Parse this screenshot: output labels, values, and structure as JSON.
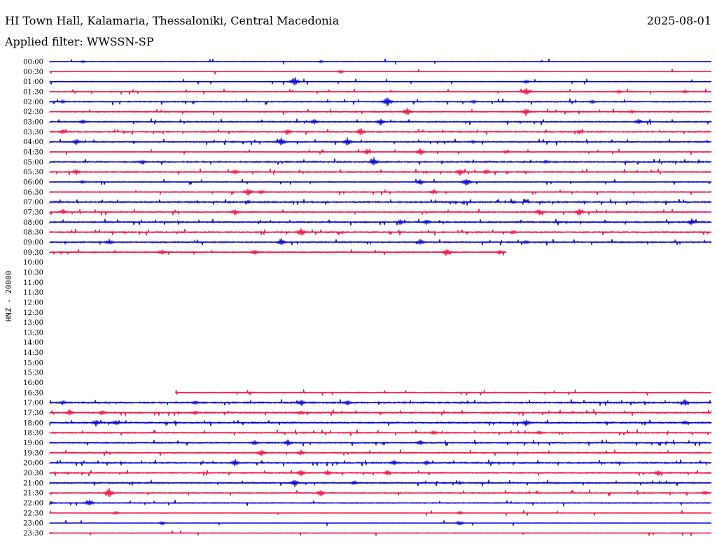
{
  "header": {
    "station": "HI Town Hall, Kalamaria, Thessaloniki, Central Macedonia",
    "date": "2025-08-01",
    "filter_label": "Applied filter: WWSSN-SP"
  },
  "chart_data": {
    "type": "line",
    "title": "HI Town Hall, Kalamaria, Thessaloniki, Central Macedonia",
    "ylabel": "HNZ - 20000",
    "colors": {
      "even_row": "#0000cc",
      "odd_row": "#ee1144"
    },
    "rows": [
      {
        "label": "00:00",
        "start": 0.0,
        "end": 1.0,
        "activity": 0.15,
        "events": [
          {
            "pos": 0.05,
            "amp": 2
          },
          {
            "pos": 0.41,
            "amp": 2
          }
        ]
      },
      {
        "label": "00:30",
        "start": 0.0,
        "end": 1.0,
        "activity": 0.05,
        "events": [
          {
            "pos": 0.44,
            "amp": 3
          }
        ]
      },
      {
        "label": "01:00",
        "start": 0.0,
        "end": 1.0,
        "activity": 0.2,
        "events": [
          {
            "pos": 0.37,
            "amp": 9
          },
          {
            "pos": 0.72,
            "amp": 3
          }
        ]
      },
      {
        "label": "01:30",
        "start": 0.0,
        "end": 1.0,
        "activity": 0.35,
        "events": [
          {
            "pos": 0.72,
            "amp": 7
          },
          {
            "pos": 0.86,
            "amp": 3
          },
          {
            "pos": 0.96,
            "amp": 3
          }
        ]
      },
      {
        "label": "02:00",
        "start": 0.0,
        "end": 1.0,
        "activity": 0.4,
        "events": [
          {
            "pos": 0.02,
            "amp": 3
          },
          {
            "pos": 0.51,
            "amp": 9
          },
          {
            "pos": 0.64,
            "amp": 3
          },
          {
            "pos": 0.82,
            "amp": 3
          }
        ]
      },
      {
        "label": "02:30",
        "start": 0.0,
        "end": 1.0,
        "activity": 0.45,
        "events": [
          {
            "pos": 0.54,
            "amp": 7
          },
          {
            "pos": 0.72,
            "amp": 7
          },
          {
            "pos": 0.88,
            "amp": 3
          }
        ]
      },
      {
        "label": "03:00",
        "start": 0.0,
        "end": 1.0,
        "activity": 0.45,
        "events": [
          {
            "pos": 0.05,
            "amp": 4
          },
          {
            "pos": 0.4,
            "amp": 5
          },
          {
            "pos": 0.5,
            "amp": 6
          },
          {
            "pos": 0.89,
            "amp": 5
          }
        ]
      },
      {
        "label": "03:30",
        "start": 0.0,
        "end": 1.0,
        "activity": 0.55,
        "events": [
          {
            "pos": 0.02,
            "amp": 4
          },
          {
            "pos": 0.36,
            "amp": 5
          },
          {
            "pos": 0.47,
            "amp": 7
          },
          {
            "pos": 0.8,
            "amp": 4
          }
        ]
      },
      {
        "label": "04:00",
        "start": 0.0,
        "end": 1.0,
        "activity": 0.5,
        "events": [
          {
            "pos": 0.04,
            "amp": 5
          },
          {
            "pos": 0.35,
            "amp": 7
          },
          {
            "pos": 0.45,
            "amp": 7
          },
          {
            "pos": 0.64,
            "amp": 3
          }
        ]
      },
      {
        "label": "04:30",
        "start": 0.0,
        "end": 1.0,
        "activity": 0.3,
        "events": [
          {
            "pos": 0.48,
            "amp": 5
          },
          {
            "pos": 0.56,
            "amp": 6
          },
          {
            "pos": 0.69,
            "amp": 3
          }
        ]
      },
      {
        "label": "05:00",
        "start": 0.0,
        "end": 1.0,
        "activity": 0.6,
        "events": [
          {
            "pos": 0.14,
            "amp": 4
          },
          {
            "pos": 0.49,
            "amp": 7
          },
          {
            "pos": 0.75,
            "amp": 3
          }
        ]
      },
      {
        "label": "05:30",
        "start": 0.0,
        "end": 1.0,
        "activity": 0.45,
        "events": [
          {
            "pos": 0.04,
            "amp": 5
          },
          {
            "pos": 0.28,
            "amp": 5
          },
          {
            "pos": 0.62,
            "amp": 6
          },
          {
            "pos": 0.66,
            "amp": 5
          }
        ]
      },
      {
        "label": "06:00",
        "start": 0.0,
        "end": 1.0,
        "activity": 0.35,
        "events": [
          {
            "pos": 0.05,
            "amp": 3
          },
          {
            "pos": 0.56,
            "amp": 5
          },
          {
            "pos": 0.63,
            "amp": 7
          }
        ]
      },
      {
        "label": "06:30",
        "start": 0.0,
        "end": 1.0,
        "activity": 0.35,
        "events": [
          {
            "pos": 0.3,
            "amp": 7
          },
          {
            "pos": 0.32,
            "amp": 4
          },
          {
            "pos": 0.58,
            "amp": 5
          }
        ]
      },
      {
        "label": "07:00",
        "start": 0.0,
        "end": 1.0,
        "activity": 0.65,
        "events": [
          {
            "pos": 0.3,
            "amp": 3
          },
          {
            "pos": 0.7,
            "amp": 3
          }
        ]
      },
      {
        "label": "07:30",
        "start": 0.0,
        "end": 1.0,
        "activity": 0.5,
        "events": [
          {
            "pos": 0.02,
            "amp": 5
          },
          {
            "pos": 0.28,
            "amp": 6
          },
          {
            "pos": 0.74,
            "amp": 6
          },
          {
            "pos": 0.8,
            "amp": 7
          }
        ]
      },
      {
        "label": "08:00",
        "start": 0.0,
        "end": 1.0,
        "activity": 0.55,
        "events": [
          {
            "pos": 0.53,
            "amp": 5
          },
          {
            "pos": 0.57,
            "amp": 5
          },
          {
            "pos": 0.97,
            "amp": 6
          }
        ]
      },
      {
        "label": "08:30",
        "start": 0.0,
        "end": 1.0,
        "activity": 0.6,
        "events": [
          {
            "pos": 0.38,
            "amp": 8
          },
          {
            "pos": 0.7,
            "amp": 4
          }
        ]
      },
      {
        "label": "09:00",
        "start": 0.0,
        "end": 1.0,
        "activity": 0.55,
        "events": [
          {
            "pos": 0.09,
            "amp": 5
          },
          {
            "pos": 0.35,
            "amp": 7
          },
          {
            "pos": 0.56,
            "amp": 6
          },
          {
            "pos": 0.72,
            "amp": 4
          }
        ]
      },
      {
        "label": "09:30",
        "start": 0.0,
        "end": 0.69,
        "activity": 0.45,
        "events": [
          {
            "pos": 0.17,
            "amp": 5
          },
          {
            "pos": 0.31,
            "amp": 5
          },
          {
            "pos": 0.6,
            "amp": 7
          },
          {
            "pos": 0.68,
            "amp": 4
          }
        ]
      },
      {
        "label": "10:00",
        "start": 0,
        "end": 0,
        "activity": 0,
        "events": []
      },
      {
        "label": "10:30",
        "start": 0,
        "end": 0,
        "activity": 0,
        "events": []
      },
      {
        "label": "11:00",
        "start": 0,
        "end": 0,
        "activity": 0,
        "events": []
      },
      {
        "label": "11:30",
        "start": 0,
        "end": 0,
        "activity": 0,
        "events": []
      },
      {
        "label": "12:00",
        "start": 0,
        "end": 0,
        "activity": 0,
        "events": []
      },
      {
        "label": "12:30",
        "start": 0,
        "end": 0,
        "activity": 0,
        "events": []
      },
      {
        "label": "13:00",
        "start": 0,
        "end": 0,
        "activity": 0,
        "events": []
      },
      {
        "label": "13:30",
        "start": 0,
        "end": 0,
        "activity": 0,
        "events": []
      },
      {
        "label": "14:00",
        "start": 0,
        "end": 0,
        "activity": 0,
        "events": []
      },
      {
        "label": "14:30",
        "start": 0,
        "end": 0,
        "activity": 0,
        "events": []
      },
      {
        "label": "15:00",
        "start": 0,
        "end": 0,
        "activity": 0,
        "events": []
      },
      {
        "label": "15:30",
        "start": 0,
        "end": 0,
        "activity": 0,
        "events": []
      },
      {
        "label": "16:00",
        "start": 0,
        "end": 0,
        "activity": 0,
        "events": []
      },
      {
        "label": "16:30",
        "start": 0.19,
        "end": 1.0,
        "activity": 0.3,
        "events": []
      },
      {
        "label": "17:00",
        "start": 0.0,
        "end": 1.0,
        "activity": 0.6,
        "events": [
          {
            "pos": 0.02,
            "amp": 4
          },
          {
            "pos": 0.22,
            "amp": 4
          },
          {
            "pos": 0.38,
            "amp": 6
          },
          {
            "pos": 0.45,
            "amp": 5
          },
          {
            "pos": 0.96,
            "amp": 6
          }
        ]
      },
      {
        "label": "17:30",
        "start": 0.0,
        "end": 1.0,
        "activity": 0.55,
        "events": [
          {
            "pos": 0.03,
            "amp": 6
          },
          {
            "pos": 0.08,
            "amp": 5
          },
          {
            "pos": 0.22,
            "amp": 4
          },
          {
            "pos": 0.38,
            "amp": 4
          }
        ]
      },
      {
        "label": "18:00",
        "start": 0.0,
        "end": 1.0,
        "activity": 0.6,
        "events": [
          {
            "pos": 0.07,
            "amp": 6
          },
          {
            "pos": 0.1,
            "amp": 5
          },
          {
            "pos": 0.72,
            "amp": 6
          },
          {
            "pos": 0.96,
            "amp": 4
          }
        ]
      },
      {
        "label": "18:30",
        "start": 0.0,
        "end": 1.0,
        "activity": 0.5,
        "events": [
          {
            "pos": 0.58,
            "amp": 4
          },
          {
            "pos": 0.74,
            "amp": 4
          }
        ]
      },
      {
        "label": "19:00",
        "start": 0.0,
        "end": 1.0,
        "activity": 0.45,
        "events": [
          {
            "pos": 0.31,
            "amp": 4
          },
          {
            "pos": 0.36,
            "amp": 6
          },
          {
            "pos": 0.56,
            "amp": 5
          }
        ]
      },
      {
        "label": "19:30",
        "start": 0.0,
        "end": 1.0,
        "activity": 0.45,
        "events": [
          {
            "pos": 0.32,
            "amp": 7
          },
          {
            "pos": 0.38,
            "amp": 5
          }
        ]
      },
      {
        "label": "20:00",
        "start": 0.0,
        "end": 1.0,
        "activity": 0.55,
        "events": [
          {
            "pos": 0.28,
            "amp": 6
          },
          {
            "pos": 0.52,
            "amp": 5
          },
          {
            "pos": 0.57,
            "amp": 4
          }
        ]
      },
      {
        "label": "20:30",
        "start": 0.0,
        "end": 1.0,
        "activity": 0.5,
        "events": [
          {
            "pos": 0.38,
            "amp": 6
          },
          {
            "pos": 0.42,
            "amp": 5
          },
          {
            "pos": 0.51,
            "amp": 5
          },
          {
            "pos": 0.92,
            "amp": 6
          }
        ]
      },
      {
        "label": "21:00",
        "start": 0.0,
        "end": 1.0,
        "activity": 0.5,
        "events": [
          {
            "pos": 0.37,
            "amp": 7
          },
          {
            "pos": 0.46,
            "amp": 4
          },
          {
            "pos": 0.62,
            "amp": 3
          }
        ]
      },
      {
        "label": "21:30",
        "start": 0.0,
        "end": 1.0,
        "activity": 0.45,
        "events": [
          {
            "pos": 0.09,
            "amp": 9
          },
          {
            "pos": 0.41,
            "amp": 6
          },
          {
            "pos": 0.99,
            "amp": 4
          }
        ]
      },
      {
        "label": "22:00",
        "start": 0.0,
        "end": 1.0,
        "activity": 0.3,
        "events": [
          {
            "pos": 0.0,
            "amp": 4
          },
          {
            "pos": 0.06,
            "amp": 6
          }
        ]
      },
      {
        "label": "22:30",
        "start": 0.0,
        "end": 1.0,
        "activity": 0.15,
        "events": [
          {
            "pos": 0.1,
            "amp": 3
          },
          {
            "pos": 0.62,
            "amp": 3
          }
        ]
      },
      {
        "label": "23:00",
        "start": 0.0,
        "end": 1.0,
        "activity": 0.15,
        "events": [
          {
            "pos": 0.17,
            "amp": 3
          },
          {
            "pos": 0.62,
            "amp": 4
          }
        ]
      },
      {
        "label": "23:30",
        "start": 0.0,
        "end": 1.0,
        "activity": 0.2,
        "events": [
          {
            "pos": 0.0,
            "amp": 2
          }
        ]
      }
    ]
  }
}
